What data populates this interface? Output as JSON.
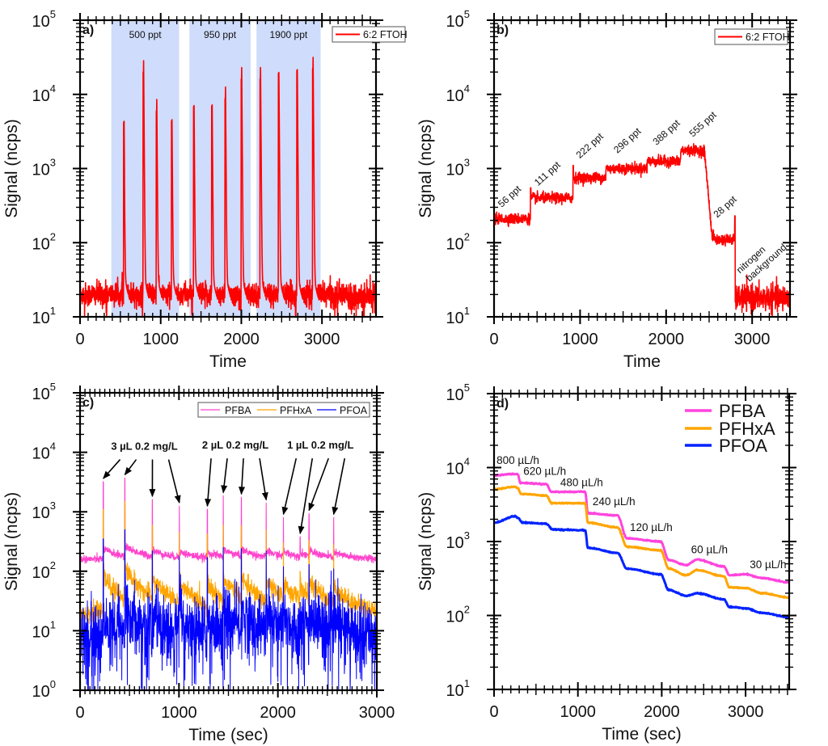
{
  "chart_data": [
    {
      "type": "line",
      "panel_label": "a)",
      "xlabel": "Time",
      "ylabel": "Signal (ncps)",
      "yscale": "log",
      "xlim": [
        0,
        3670
      ],
      "ylim": [
        10,
        100000
      ],
      "xticks": [
        0,
        1000,
        2000,
        3000
      ],
      "xtick_labels": [
        "0",
        "1000",
        "2000",
        "3000"
      ],
      "yticks": [
        {
          "base": "10",
          "exp": "1"
        },
        {
          "base": "10",
          "exp": "2"
        },
        {
          "base": "10",
          "exp": "3"
        },
        {
          "base": "10",
          "exp": "4"
        },
        {
          "base": "10",
          "exp": "5"
        }
      ],
      "legend": {
        "placement": "top-right",
        "boxed": true
      },
      "series": [
        {
          "name": "6:2 FTOH",
          "color": "#ff0000",
          "baseline": 20,
          "peaks": [
            [
              545,
              6000
            ],
            [
              788,
              28500
            ],
            [
              952,
              8500
            ],
            [
              1139,
              6300
            ],
            [
              1413,
              9800
            ],
            [
              1637,
              10000
            ],
            [
              1804,
              12500
            ],
            [
              2004,
              23000
            ],
            [
              2238,
              23000
            ],
            [
              2465,
              27500
            ],
            [
              2693,
              30000
            ],
            [
              2890,
              31600
            ]
          ]
        }
      ],
      "shaded_regions": [
        {
          "label": "500 ppt",
          "x": [
            388,
            1229
          ],
          "color": "#cfdcfb"
        },
        {
          "label": "950 ppt",
          "x": [
            1356,
            2115
          ],
          "color": "#cfdcfb"
        },
        {
          "label": "1900 ppt",
          "x": [
            2188,
            2983
          ],
          "color": "#cfdcfb"
        }
      ]
    },
    {
      "type": "line",
      "panel_label": "b)",
      "xlabel": "Time",
      "ylabel": "Signal (ncps)",
      "yscale": "log",
      "xlim": [
        0,
        3440
      ],
      "ylim": [
        10,
        100000
      ],
      "xticks": [
        0,
        1000,
        2000,
        3000
      ],
      "xtick_labels": [
        "0",
        "1000",
        "2000",
        "3000"
      ],
      "yticks": [
        {
          "base": "10",
          "exp": "1"
        },
        {
          "base": "10",
          "exp": "2"
        },
        {
          "base": "10",
          "exp": "3"
        },
        {
          "base": "10",
          "exp": "4"
        },
        {
          "base": "10",
          "exp": "5"
        }
      ],
      "legend": {
        "placement": "top-right",
        "boxed": true
      },
      "series": [
        {
          "name": "6:2 FTOH",
          "color": "#ff0000",
          "steps": [
            [
              0,
              423,
              210
            ],
            [
              423,
              918,
              400
            ],
            [
              918,
              1300,
              750
            ],
            [
              1300,
              1780,
              1000
            ],
            [
              1780,
              2170,
              1250
            ],
            [
              2170,
              2445,
              1750
            ],
            [
              2445,
              2800,
              110
            ],
            [
              2800,
              3440,
              18
            ]
          ]
        }
      ],
      "annotations": [
        {
          "text": "56 ppt",
          "x": 88,
          "y": 295
        },
        {
          "text": "111 ppt",
          "x": 510,
          "y": 575
        },
        {
          "text": "222 ppt",
          "x": 996,
          "y": 1350
        },
        {
          "text": "296 ppt",
          "x": 1434,
          "y": 1585
        },
        {
          "text": "388 ppt",
          "x": 1888,
          "y": 2040
        },
        {
          "text": "555 ppt",
          "x": 2311,
          "y": 2630
        },
        {
          "text": "28 ppt",
          "x": 2593,
          "y": 214
        },
        {
          "text": "nitrogen",
          "x": 2859,
          "y": 38
        },
        {
          "text": "background",
          "x": 2969,
          "y": 29.5
        }
      ]
    },
    {
      "type": "line",
      "panel_label": "c)",
      "xlabel": "Time (sec)",
      "ylabel": "Signal (ncps)",
      "yscale": "log",
      "xlim": [
        0,
        3000
      ],
      "ylim": [
        1,
        100000
      ],
      "xticks": [
        0,
        1000,
        2000,
        3000
      ],
      "xtick_labels": [
        "0",
        "1000",
        "2000",
        "3000"
      ],
      "yticks": [
        {
          "base": "10",
          "exp": "0"
        },
        {
          "base": "10",
          "exp": "1"
        },
        {
          "base": "10",
          "exp": "2"
        },
        {
          "base": "10",
          "exp": "3"
        },
        {
          "base": "10",
          "exp": "4"
        },
        {
          "base": "10",
          "exp": "5"
        }
      ],
      "legend": {
        "placement": "top-right",
        "boxed": true,
        "orientation": "horizontal"
      },
      "peak_times": [
        235,
        453,
        731,
        1004,
        1287,
        1448,
        1631,
        1882,
        2056,
        2225,
        2315,
        2564
      ],
      "series": [
        {
          "name": "PFBA",
          "color": "#ff44cc",
          "baseline": 160,
          "peak_values": [
            3200,
            3700,
            1600,
            1250,
            1100,
            1850,
            1750,
            1400,
            800,
            380,
            930,
            800
          ]
        },
        {
          "name": "PFHxA",
          "color": "#ffa500",
          "baseline": 20,
          "peak_values": [
            1100,
            1500,
            600,
            450,
            420,
            600,
            580,
            500,
            300,
            100,
            330,
            280
          ]
        },
        {
          "name": "PFOA",
          "color": "#0000ff",
          "baseline": 8,
          "peak_values": [
            350,
            500,
            220,
            180,
            170,
            250,
            240,
            220,
            120,
            30,
            130,
            110
          ]
        }
      ],
      "annotations": [
        {
          "text": "3 µL 0.2 mg/L",
          "x": 650,
          "y": 11000,
          "targets": [
            0,
            1,
            2,
            3
          ]
        },
        {
          "text": "2 µL 0.2 mg/L",
          "x": 1570,
          "y": 11500,
          "targets": [
            4,
            5,
            6,
            7
          ]
        },
        {
          "text": "1 µL 0.2 mg/L",
          "x": 2430,
          "y": 11500,
          "targets": [
            8,
            9,
            10,
            11
          ]
        }
      ]
    },
    {
      "type": "line",
      "panel_label": "d)",
      "xlabel": "Time (sec)",
      "ylabel": "Signal (ncps)",
      "yscale": "log",
      "xlim": [
        0,
        3520
      ],
      "ylim": [
        10,
        100000
      ],
      "xticks": [
        0,
        1000,
        2000,
        3000
      ],
      "xtick_labels": [
        "0",
        "1000",
        "2000",
        "3000"
      ],
      "yticks": [
        {
          "base": "10",
          "exp": "1"
        },
        {
          "base": "10",
          "exp": "2"
        },
        {
          "base": "10",
          "exp": "3"
        },
        {
          "base": "10",
          "exp": "4"
        },
        {
          "base": "10",
          "exp": "5"
        }
      ],
      "legend": {
        "placement": "top-right",
        "boxed": false
      },
      "series": [
        {
          "name": "PFBA",
          "color": "#ff44dd",
          "points": [
            [
              0,
              7800
            ],
            [
              200,
              8200
            ],
            [
              283,
              8100
            ],
            [
              315,
              6200
            ],
            [
              620,
              6000
            ],
            [
              685,
              4700
            ],
            [
              1087,
              4700
            ],
            [
              1119,
              2400
            ],
            [
              1473,
              2250
            ],
            [
              1585,
              1100
            ],
            [
              1987,
              1000
            ],
            [
              2084,
              560
            ],
            [
              2293,
              480
            ],
            [
              2421,
              570
            ],
            [
              2743,
              460
            ],
            [
              2807,
              350
            ],
            [
              3000,
              360
            ],
            [
              3200,
              320
            ],
            [
              3520,
              280
            ]
          ]
        },
        {
          "name": "PFHxA",
          "color": "#ffa500",
          "points": [
            [
              0,
              5100
            ],
            [
              250,
              5500
            ],
            [
              283,
              5300
            ],
            [
              320,
              4400
            ],
            [
              620,
              4200
            ],
            [
              690,
              3300
            ],
            [
              1087,
              3300
            ],
            [
              1119,
              1800
            ],
            [
              1473,
              1550
            ],
            [
              1585,
              850
            ],
            [
              1987,
              760
            ],
            [
              2084,
              430
            ],
            [
              2293,
              350
            ],
            [
              2421,
              410
            ],
            [
              2743,
              340
            ],
            [
              2807,
              240
            ],
            [
              3000,
              235
            ],
            [
              3200,
              200
            ],
            [
              3520,
              175
            ]
          ]
        },
        {
          "name": "PFOA",
          "color": "#0022ff",
          "points": [
            [
              0,
              1800
            ],
            [
              250,
              2200
            ],
            [
              283,
              2100
            ],
            [
              340,
              1800
            ],
            [
              620,
              1750
            ],
            [
              700,
              1450
            ],
            [
              1087,
              1420
            ],
            [
              1119,
              820
            ],
            [
              1473,
              700
            ],
            [
              1585,
              430
            ],
            [
              1987,
              360
            ],
            [
              2084,
              220
            ],
            [
              2293,
              185
            ],
            [
              2421,
              200
            ],
            [
              2743,
              165
            ],
            [
              2807,
              130
            ],
            [
              3000,
              125
            ],
            [
              3200,
              108
            ],
            [
              3520,
              95
            ]
          ]
        }
      ],
      "annotations": [
        {
          "text": "800 µL/h",
          "x": 30,
          "y": 11200
        },
        {
          "text": "620 µL/h",
          "x": 350,
          "y": 7950
        },
        {
          "text": "480 µL/h",
          "x": 790,
          "y": 5620
        },
        {
          "text": "240 µL/h",
          "x": 1175,
          "y": 3100
        },
        {
          "text": "120 µL/h",
          "x": 1620,
          "y": 1380
        },
        {
          "text": "60 µL/h",
          "x": 2350,
          "y": 690
        },
        {
          "text": "30 µL/h",
          "x": 3050,
          "y": 437
        }
      ]
    }
  ]
}
